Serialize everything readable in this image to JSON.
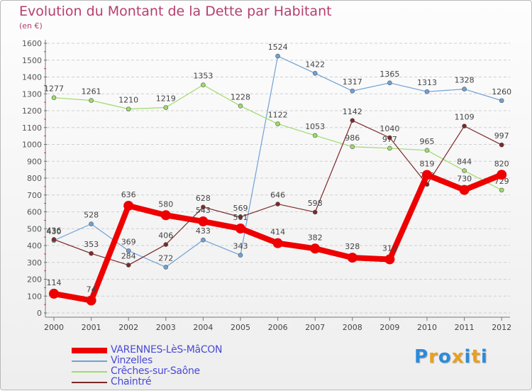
{
  "title": "Evolution du Montant de la Dette par Habitant",
  "subtitle": "(en €)",
  "chart_data": {
    "type": "line",
    "title": "Evolution du Montant de la Dette par Habitant",
    "subtitle": "(en €)",
    "x": [
      "2000",
      "2001",
      "2002",
      "2003",
      "2004",
      "2005",
      "2006",
      "2007",
      "2008",
      "2009",
      "2010",
      "2011",
      "2012"
    ],
    "y_ticks": [
      0,
      100,
      200,
      300,
      400,
      500,
      600,
      700,
      800,
      900,
      1000,
      1100,
      1200,
      1300,
      1400,
      1500,
      1600
    ],
    "ylim": [
      0,
      1600
    ],
    "grid": "horizontal dashed",
    "legend_position": "bottom-left",
    "series": [
      {
        "name": "VARENNES-LèS-MâCON",
        "color": "#ee0000",
        "values": [
          114,
          74,
          636,
          580,
          543,
          501,
          414,
          382,
          328,
          318,
          819,
          730,
          820
        ]
      },
      {
        "name": "Vinzelles",
        "color": "#6fa2d6",
        "values": [
          430,
          528,
          369,
          272,
          433,
          343,
          1524,
          1422,
          1317,
          1365,
          1313,
          1328,
          1260
        ]
      },
      {
        "name": "Crêches-sur-Saône",
        "color": "#9ddc6a",
        "values": [
          1277,
          1261,
          1210,
          1219,
          1353,
          1228,
          1122,
          1053,
          986,
          977,
          965,
          844,
          729
        ]
      },
      {
        "name": "Chaintré",
        "color": "#7a2a2a",
        "values": [
          436,
          353,
          284,
          406,
          628,
          569,
          646,
          598,
          1142,
          1040,
          763,
          1109,
          997
        ]
      }
    ]
  },
  "logo": {
    "letters": [
      "P",
      "r",
      "o",
      "x",
      "i",
      "t",
      "i"
    ],
    "colors": [
      "#2d8ad8",
      "#e8a020",
      "#2d8ad8",
      "#e8a020",
      "#2d8ad8",
      "#e8a020",
      "#2d8ad8"
    ]
  }
}
